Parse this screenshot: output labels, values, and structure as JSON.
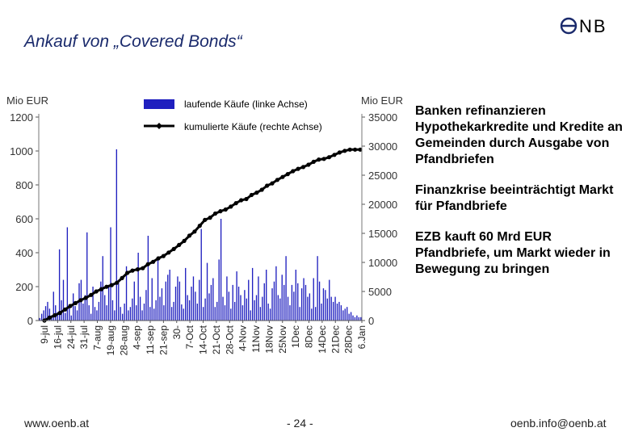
{
  "slide": {
    "title": "Ankauf von „Covered Bonds“",
    "logo_text": "NB",
    "bullets": [
      "Banken refinanzieren Hypothekarkredite und Kredite an Gemeinden durch Ausgabe von Pfandbriefen",
      "Finanzkrise beeinträchtigt Markt für Pfandbriefe",
      "EZB kauft 60 Mrd EUR Pfandbriefe, um Markt wieder in Bewegung zu bringen"
    ],
    "footer": {
      "left": "www.oenb.at",
      "center": "- 24 -",
      "right": "oenb.info@oenb.at"
    }
  },
  "colors": {
    "bars": "#1f1fbf",
    "line": "#000000",
    "title": "#1a2a6c"
  },
  "chart_data": {
    "type": "bar",
    "title": "",
    "ylabel": "Mio EUR",
    "y2label": "Mio EUR",
    "ylim": [
      0,
      1200
    ],
    "y2lim": [
      0,
      35000
    ],
    "yticks": [
      0,
      200,
      400,
      600,
      800,
      1000,
      1200
    ],
    "y2ticks": [
      0,
      5000,
      10000,
      15000,
      20000,
      25000,
      30000,
      35000
    ],
    "xtick_labels": [
      "9-jul",
      "16-jul",
      "24-jul",
      "31-jul",
      "7-aug",
      "19-aug",
      "28-aug",
      "4-sep",
      "11-sep",
      "21-sep",
      "30-",
      "7-Oct",
      "14-Oct",
      "21-Oct",
      "28-Oct",
      "4-Nov",
      "11Nov",
      "18Nov",
      "25Nov",
      "1Dec",
      "8Dec",
      "14Dec",
      "21Dec",
      "28Dec",
      "6.Jan"
    ],
    "legend": {
      "position": "top",
      "entries": [
        "laufende Käufe (linke Achse)",
        "kumulierte Käufe (rechte Achse)"
      ]
    },
    "series": [
      {
        "name": "laufende Käufe (linke Achse)",
        "axis": "left",
        "type": "bar",
        "values": [
          15,
          40,
          60,
          85,
          110,
          70,
          30,
          170,
          90,
          50,
          420,
          120,
          240,
          45,
          550,
          80,
          30,
          160,
          85,
          60,
          220,
          240,
          100,
          150,
          520,
          90,
          40,
          200,
          80,
          60,
          110,
          230,
          380,
          150,
          90,
          200,
          550,
          120,
          60,
          1010,
          220,
          80,
          40,
          100,
          320,
          60,
          80,
          130,
          230,
          90,
          400,
          140,
          60,
          100,
          180,
          500,
          80,
          250,
          70,
          120,
          360,
          140,
          190,
          90,
          230,
          270,
          300,
          80,
          110,
          200,
          260,
          230,
          95,
          70,
          310,
          150,
          120,
          200,
          260,
          170,
          100,
          240,
          540,
          80,
          130,
          340,
          160,
          210,
          250,
          80,
          110,
          360,
          600,
          140,
          90,
          260,
          170,
          70,
          210,
          110,
          290,
          200,
          150,
          90,
          180,
          130,
          240,
          60,
          310,
          120,
          150,
          260,
          80,
          140,
          220,
          300,
          100,
          70,
          190,
          230,
          320,
          150,
          130,
          270,
          210,
          380,
          140,
          90,
          210,
          170,
          300,
          220,
          80,
          190,
          250,
          210,
          140,
          160,
          70,
          250,
          80,
          380,
          230,
          100,
          190,
          180,
          130,
          240,
          140,
          110,
          140,
          100,
          110,
          90,
          60,
          70,
          80,
          40,
          50,
          30,
          20,
          30,
          20,
          20
        ],
        "note_levels": []
      },
      {
        "name": "kumulierte Käufe (rechte Achse)",
        "axis": "right",
        "type": "line",
        "values": [
          0,
          500,
          900,
          1300,
          1900,
          2500,
          3000,
          3500,
          3900,
          4400,
          5000,
          5400,
          5800,
          6100,
          6500,
          7300,
          8200,
          8600,
          8800,
          9000,
          9700,
          10100,
          10700,
          11100,
          11700,
          12300,
          13000,
          13700,
          14600,
          15300,
          16300,
          17300,
          17700,
          18400,
          18800,
          19100,
          19600,
          20200,
          20700,
          20900,
          21600,
          22000,
          22500,
          23200,
          23600,
          24200,
          24700,
          25200,
          25700,
          26100,
          26400,
          26800,
          27300,
          27700,
          27800,
          28100,
          28500,
          28900,
          29200,
          29400,
          29400,
          29400
        ]
      }
    ]
  }
}
